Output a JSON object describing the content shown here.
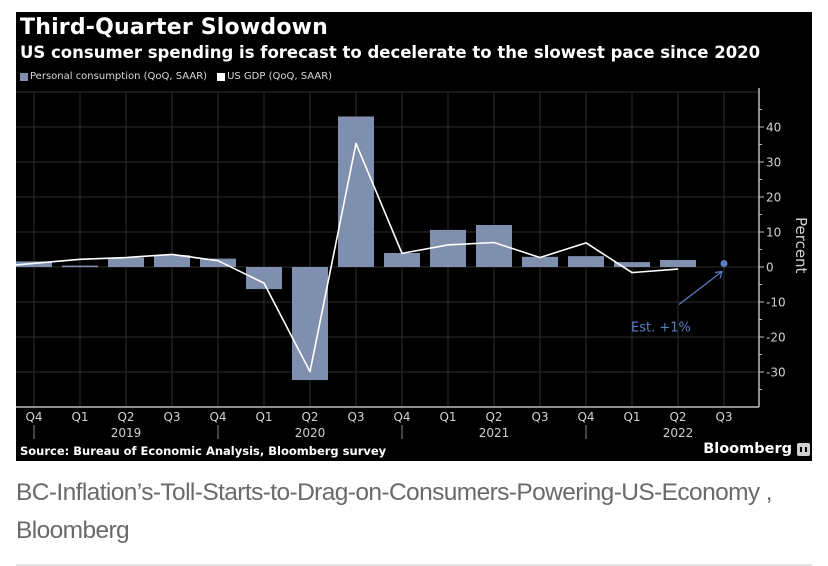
{
  "panel": {
    "title": "Third-Quarter Slowdown",
    "subtitle": "US consumer spending is forecast to decelerate to the slowest pace since 2020",
    "source": "Source: Bureau of Economic Analysis, Bloomberg survey",
    "brand": "Bloomberg",
    "brand_icon": "bloomberg-chart-icon"
  },
  "caption": {
    "text": "BC-Inflation’s-Toll-Starts-to-Drag-on-Consumers-Powering-US-Economy , Bloomberg"
  },
  "colors": {
    "background": "#000000",
    "bar": "#7f8fae",
    "line": "#ffffff",
    "gridline": "#2e2e2e",
    "axis": "#bdbdbd",
    "estimate": "#5b7fc0",
    "caption_text": "#6a6a6a"
  },
  "chart_data": {
    "type": "bar",
    "title": "Third-Quarter Slowdown",
    "subtitle": "US consumer spending is forecast to decelerate to the slowest pace since 2020",
    "xlabel": "",
    "ylabel": "Percent",
    "ylim": [
      -40,
      50
    ],
    "yticks": [
      -30,
      -20,
      -10,
      0,
      10,
      20,
      30,
      40
    ],
    "y_axis_side": "right",
    "grid": true,
    "legend_position": "top-left",
    "categories": [
      "Q4",
      "Q1",
      "Q2",
      "Q3",
      "Q4",
      "Q1",
      "Q2",
      "Q3",
      "Q4",
      "Q1",
      "Q2",
      "Q3",
      "Q4",
      "Q1",
      "Q2",
      "Q3"
    ],
    "year_labels": [
      {
        "label": "2019",
        "category_index": 2
      },
      {
        "label": "2020",
        "category_index": 6
      },
      {
        "label": "2021",
        "category_index": 10
      },
      {
        "label": "2022",
        "category_index": 14
      }
    ],
    "year_separators_after_index": [
      0,
      4,
      8,
      12
    ],
    "series": [
      {
        "name": "Personal consumption (QoQ, SAAR)",
        "type": "bar",
        "values": [
          1.6,
          0.4,
          2.7,
          3.4,
          2.4,
          -6.3,
          -32.3,
          43.0,
          4.0,
          10.6,
          12.0,
          2.9,
          3.1,
          1.4,
          2.0,
          null
        ]
      },
      {
        "name": "US GDP (QoQ, SAAR)",
        "type": "line",
        "values": [
          0.6,
          2.2,
          2.7,
          3.6,
          1.8,
          -4.6,
          -29.9,
          35.3,
          3.9,
          6.3,
          7.0,
          2.7,
          6.9,
          -1.6,
          -0.6,
          null
        ]
      }
    ],
    "annotations": [
      {
        "text": "Est. +1%",
        "category_index": 15,
        "value": 1.0,
        "series": "Personal consumption (QoQ, SAAR)"
      }
    ]
  }
}
